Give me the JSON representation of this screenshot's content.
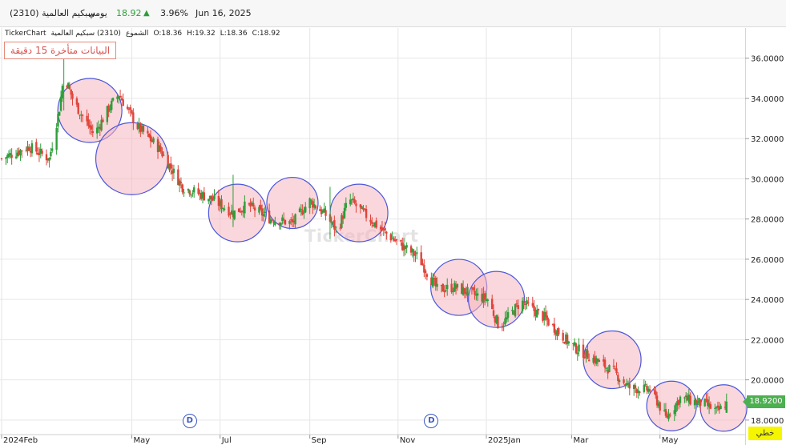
{
  "header": {
    "name": "سبكيم العالمية",
    "code": "(2310)",
    "period": "يومي",
    "price": "18.92",
    "change": "3.96%",
    "date": "Jun 16, 2025"
  },
  "ohlc_bar": {
    "source": "TickerChart",
    "symbol": "(2310) سبكيم العالمية",
    "series_label": "الشموع",
    "open": "O:18.36",
    "high": "H:19.32",
    "low": "L:18.36",
    "close": "C:18.92"
  },
  "delay_notice": "البيانات متأخرة 15 دقيقة",
  "watermark": "TickerChart",
  "last_price_label": "18.9200",
  "scale_button": "خطي",
  "dividend_marker": "D",
  "colors": {
    "up": "#2e9e3a",
    "down": "#e0443a",
    "circle_fill": "#f5b6bf",
    "circle_stroke": "#4b57d9",
    "price_tag": "#4caf50",
    "scale_button": "#f5f500"
  },
  "chart_data": {
    "type": "candlestick",
    "x_ticks": [
      "2024Feb",
      "May",
      "Jul",
      "Sep",
      "Nov",
      "2025Jan",
      "Mar",
      "May"
    ],
    "y_ticks": [
      "18.0000",
      "20.0000",
      "22.0000",
      "24.0000",
      "26.0000",
      "28.0000",
      "30.0000",
      "32.0000",
      "34.0000",
      "36.0000"
    ],
    "ylim": [
      16.8,
      37.5
    ],
    "xlim": [
      "2024-02-01",
      "2025-06-20"
    ],
    "grid": true,
    "anchors": [
      [
        "2024-02-01",
        31.0
      ],
      [
        "2024-02-20",
        31.6
      ],
      [
        "2024-03-05",
        31.0
      ],
      [
        "2024-03-12",
        33.5
      ],
      [
        "2024-03-15",
        35.2
      ],
      [
        "2024-03-22",
        33.8
      ],
      [
        "2024-04-05",
        32.2
      ],
      [
        "2024-04-15",
        33.5
      ],
      [
        "2024-04-22",
        34.2
      ],
      [
        "2024-05-05",
        32.6
      ],
      [
        "2024-05-20",
        31.5
      ],
      [
        "2024-06-05",
        29.6
      ],
      [
        "2024-06-25",
        29.0
      ],
      [
        "2024-07-10",
        28.3
      ],
      [
        "2024-07-20",
        28.7
      ],
      [
        "2024-08-05",
        28.0
      ],
      [
        "2024-08-20",
        27.8
      ],
      [
        "2024-09-01",
        28.9
      ],
      [
        "2024-09-12",
        28.2
      ],
      [
        "2024-09-20",
        27.4
      ],
      [
        "2024-09-28",
        29.0
      ],
      [
        "2024-10-08",
        28.3
      ],
      [
        "2024-10-20",
        27.5
      ],
      [
        "2024-11-01",
        26.8
      ],
      [
        "2024-11-15",
        26.1
      ],
      [
        "2024-11-28",
        24.5
      ],
      [
        "2024-12-10",
        24.6
      ],
      [
        "2024-12-25",
        24.2
      ],
      [
        "2025-01-02",
        24.0
      ],
      [
        "2025-01-10",
        22.6
      ],
      [
        "2025-01-25",
        23.9
      ],
      [
        "2025-02-10",
        23.1
      ],
      [
        "2025-03-01",
        21.7
      ],
      [
        "2025-03-15",
        21.1
      ],
      [
        "2025-03-30",
        20.4
      ],
      [
        "2025-04-10",
        19.6
      ],
      [
        "2025-04-25",
        19.5
      ],
      [
        "2025-05-05",
        18.1
      ],
      [
        "2025-05-15",
        19.1
      ],
      [
        "2025-06-01",
        18.8
      ],
      [
        "2025-06-10",
        18.4
      ],
      [
        "2025-06-16",
        18.9
      ]
    ],
    "last": {
      "date": "2025-06-16",
      "open": 18.36,
      "high": 19.32,
      "low": 18.36,
      "close": 18.92
    },
    "circles": [
      [
        "2024-04-02",
        33.4,
        40
      ],
      [
        "2024-05-01",
        31.0,
        45
      ],
      [
        "2024-07-13",
        28.3,
        36
      ],
      [
        "2024-08-20",
        28.8,
        32
      ],
      [
        "2024-10-05",
        28.3,
        36
      ],
      [
        "2024-12-13",
        24.6,
        35
      ],
      [
        "2025-01-08",
        24.0,
        35
      ],
      [
        "2025-03-29",
        21.0,
        36
      ],
      [
        "2025-05-09",
        18.7,
        31
      ],
      [
        "2025-06-14",
        18.6,
        29
      ]
    ],
    "dividend_dates": [
      "2024-06-10",
      "2024-11-24"
    ]
  }
}
